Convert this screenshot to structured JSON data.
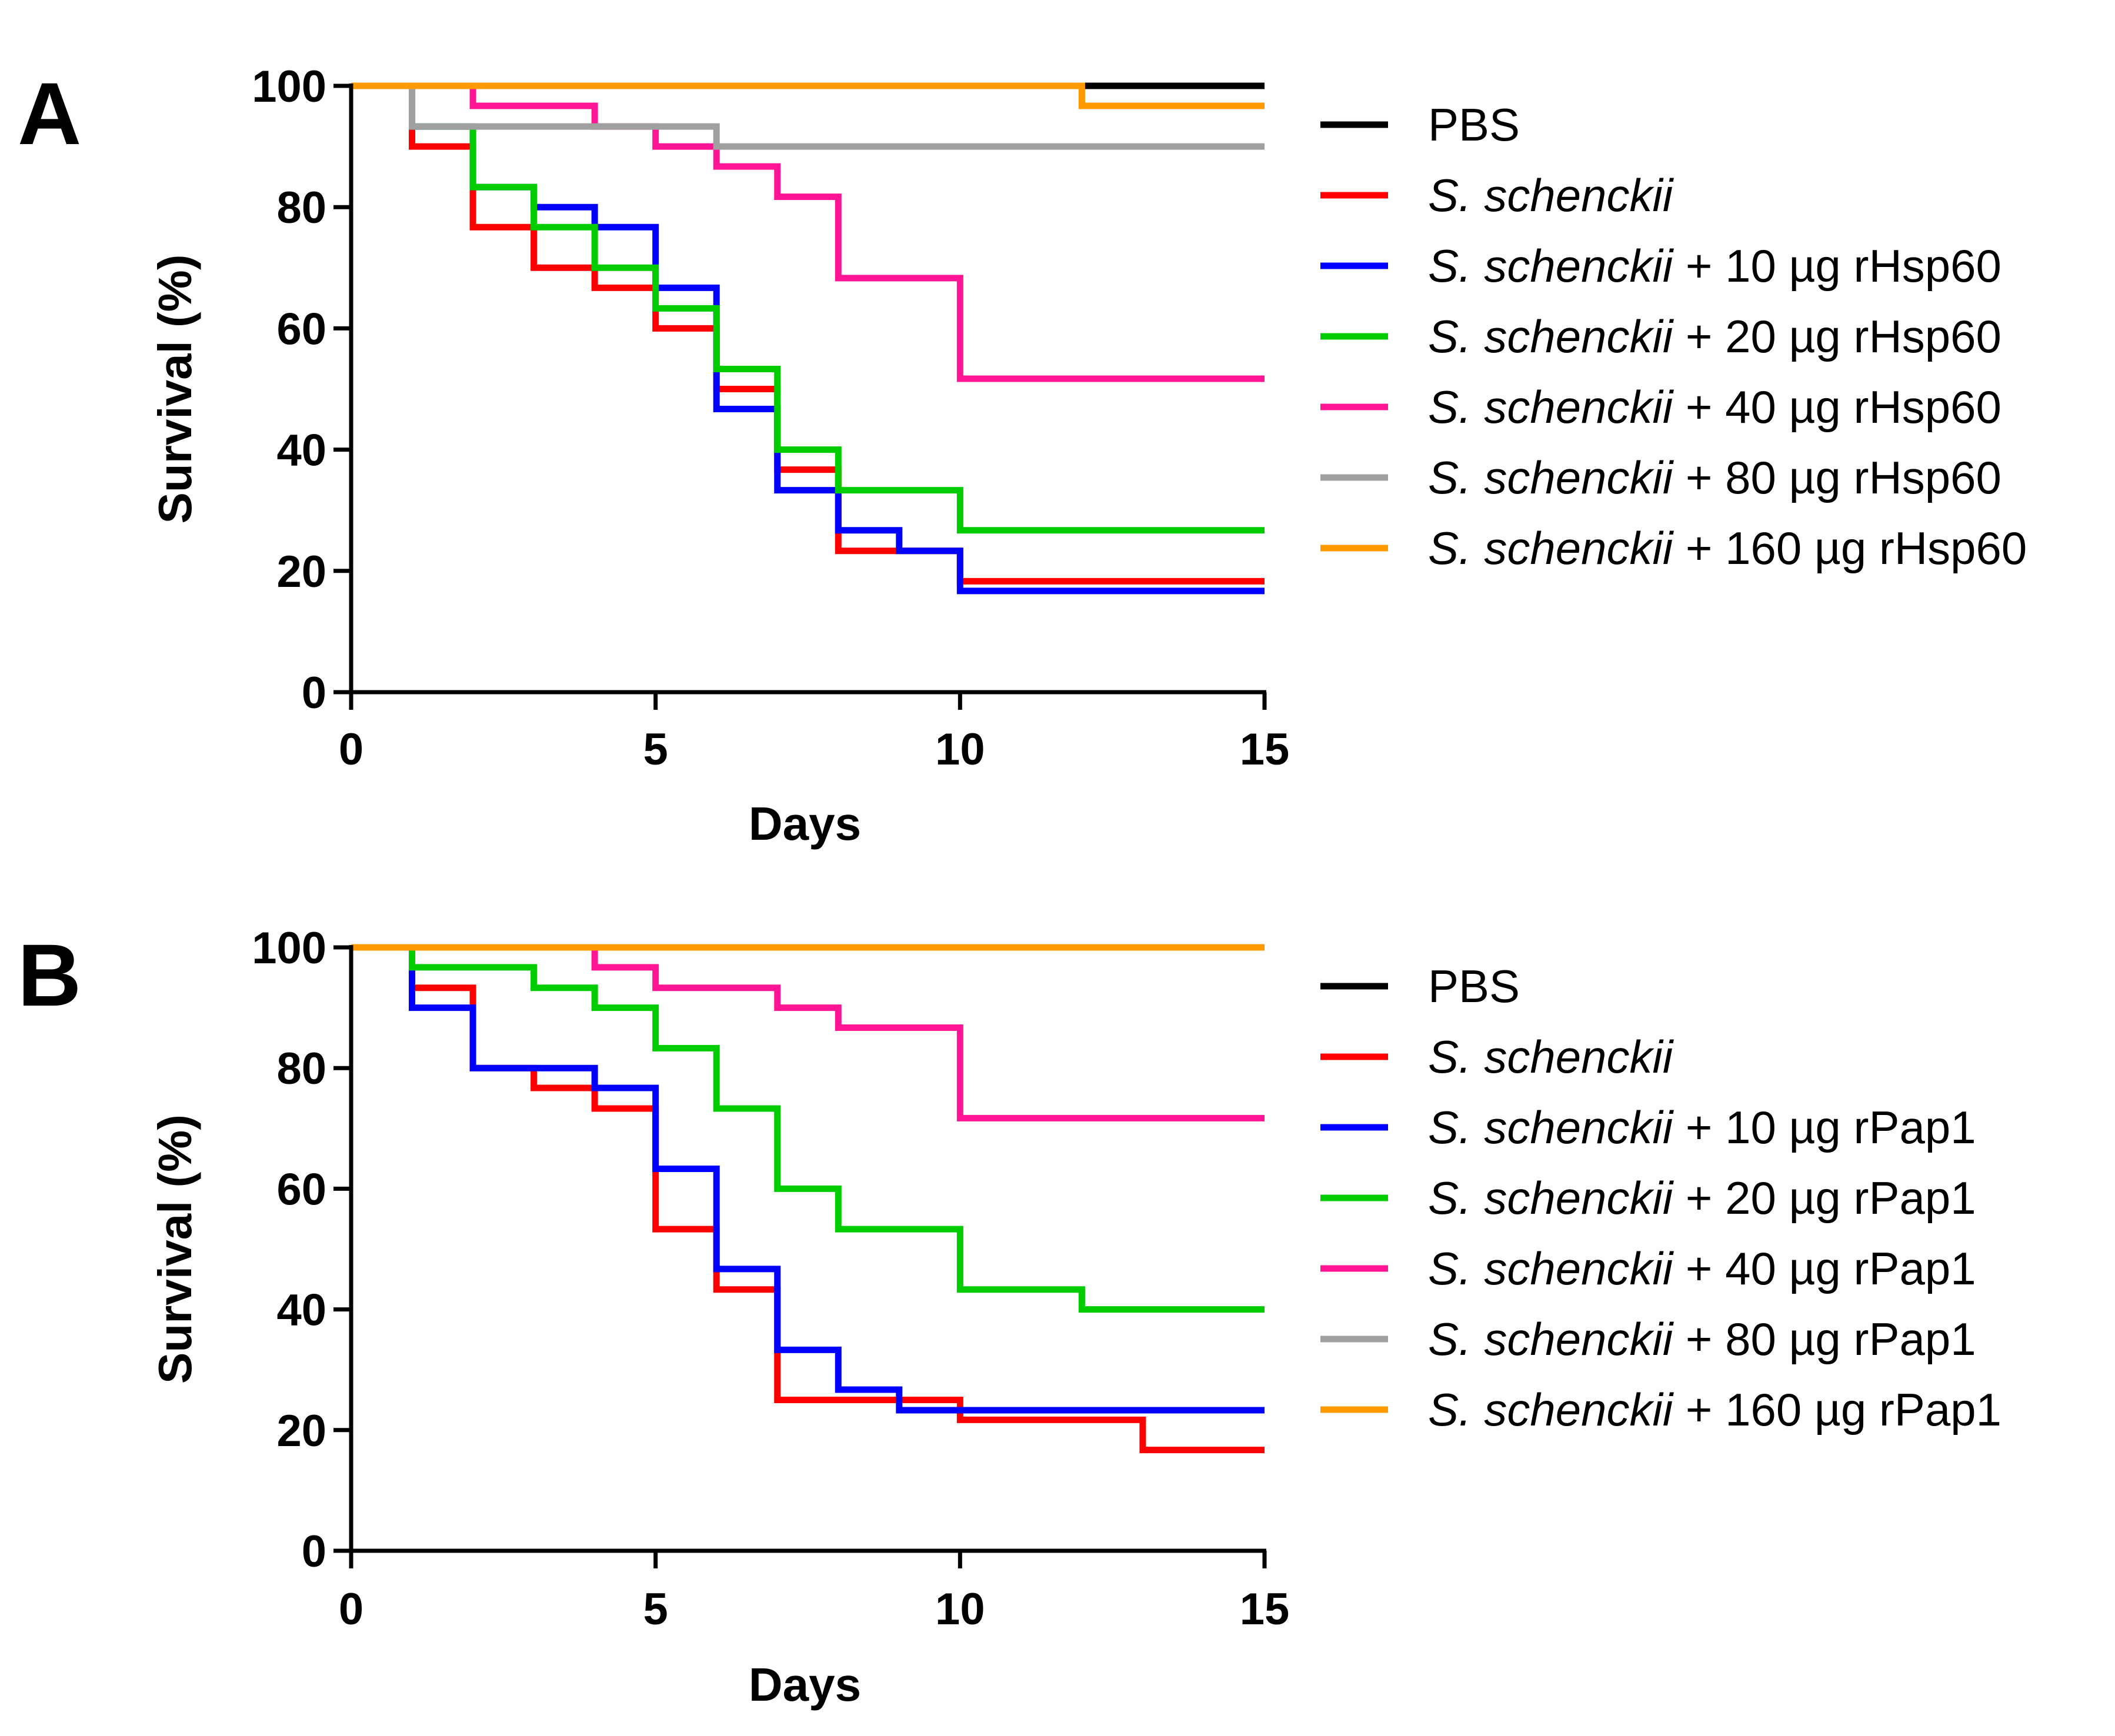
{
  "chart_data": [
    {
      "type": "line",
      "panel": "A",
      "xlabel": "Days",
      "ylabel": "Survival (%)",
      "xlim": [
        0,
        15
      ],
      "ylim": [
        0,
        100
      ],
      "xticks": [
        0,
        5,
        10,
        15
      ],
      "yticks": [
        0,
        20,
        40,
        60,
        80,
        100
      ],
      "xtick_labels": [
        "0",
        "5",
        "10",
        "15"
      ],
      "ytick_labels": [
        "0",
        "20",
        "40",
        "60",
        "80",
        "100"
      ],
      "legend_position": "right",
      "series": [
        {
          "name_plain": "PBS",
          "name_italic": "",
          "name_rest": "",
          "color": "#000000",
          "x": [
            0,
            15
          ],
          "y": [
            100,
            100
          ]
        },
        {
          "name_plain": "",
          "name_italic": "S. schenckii",
          "name_rest": "",
          "color": "#ff0000",
          "x": [
            0,
            1,
            2,
            3,
            4,
            5,
            6,
            7,
            8,
            10,
            15
          ],
          "y": [
            100,
            90,
            76.7,
            70,
            66.7,
            60,
            50,
            36.7,
            23.3,
            18.3,
            18.3
          ]
        },
        {
          "name_plain": "",
          "name_italic": "S. schenckii",
          "name_rest": " + 10 µg rHsp60",
          "color": "#0000ff",
          "x": [
            0,
            1,
            2,
            3,
            4,
            5,
            6,
            7,
            8,
            9,
            10,
            15
          ],
          "y": [
            100,
            93.3,
            83.3,
            80,
            76.7,
            66.7,
            46.7,
            33.3,
            26.7,
            23.3,
            16.7,
            16.7
          ]
        },
        {
          "name_plain": "",
          "name_italic": "S. schenckii",
          "name_rest": " + 20 µg rHsp60",
          "color": "#00cc00",
          "x": [
            0,
            1,
            2,
            3,
            4,
            5,
            6,
            7,
            8,
            10,
            15
          ],
          "y": [
            100,
            93.3,
            83.3,
            76.7,
            70,
            63.3,
            53.3,
            40,
            33.3,
            26.7,
            26.7
          ]
        },
        {
          "name_plain": "",
          "name_italic": "S. schenckii",
          "name_rest": " + 40 µg rHsp60",
          "color": "#ff1493",
          "x": [
            0,
            2,
            4,
            5,
            6,
            7,
            8,
            10,
            15
          ],
          "y": [
            100,
            96.7,
            93.3,
            90,
            86.7,
            81.7,
            68.3,
            51.7,
            51.7
          ]
        },
        {
          "name_plain": "",
          "name_italic": "S. schenckii",
          "name_rest": " + 80 µg rHsp60",
          "color": "#a0a0a0",
          "x": [
            0,
            1,
            6,
            15
          ],
          "y": [
            100,
            93.3,
            90,
            90
          ]
        },
        {
          "name_plain": "",
          "name_italic": "S. schenckii",
          "name_rest": " + 160 µg rHsp60",
          "color": "#ff9900",
          "x": [
            0,
            12,
            15
          ],
          "y": [
            100,
            96.7,
            96.7
          ]
        }
      ]
    },
    {
      "type": "line",
      "panel": "B",
      "xlabel": "Days",
      "ylabel": "Survival (%)",
      "xlim": [
        0,
        15
      ],
      "ylim": [
        0,
        100
      ],
      "xticks": [
        0,
        5,
        10,
        15
      ],
      "yticks": [
        0,
        20,
        40,
        60,
        80,
        100
      ],
      "xtick_labels": [
        "0",
        "5",
        "10",
        "15"
      ],
      "ytick_labels": [
        "0",
        "20",
        "40",
        "60",
        "80",
        "100"
      ],
      "legend_position": "right",
      "series": [
        {
          "name_plain": "PBS",
          "name_italic": "",
          "name_rest": "",
          "color": "#000000",
          "x": [
            0,
            15
          ],
          "y": [
            100,
            100
          ]
        },
        {
          "name_plain": "",
          "name_italic": "S. schenckii",
          "name_rest": "",
          "color": "#ff0000",
          "x": [
            0,
            1,
            2,
            3,
            4,
            5,
            6,
            7,
            10,
            13,
            15
          ],
          "y": [
            100,
            93.3,
            80,
            76.7,
            73.3,
            53.3,
            43.3,
            25,
            21.7,
            16.7,
            16.7
          ]
        },
        {
          "name_plain": "",
          "name_italic": "S. schenckii",
          "name_rest": " + 10 µg rPap1",
          "color": "#0000ff",
          "x": [
            0,
            1,
            2,
            4,
            5,
            6,
            7,
            8,
            9,
            15
          ],
          "y": [
            100,
            90,
            80,
            76.7,
            63.3,
            46.7,
            33.3,
            26.7,
            23.3,
            23.3
          ]
        },
        {
          "name_plain": "",
          "name_italic": "S. schenckii",
          "name_rest": " + 20 µg rPap1",
          "color": "#00cc00",
          "x": [
            0,
            1,
            3,
            4,
            5,
            6,
            7,
            8,
            10,
            12,
            15
          ],
          "y": [
            100,
            96.7,
            93.3,
            90,
            83.3,
            73.3,
            60,
            53.3,
            43.3,
            40,
            40
          ]
        },
        {
          "name_plain": "",
          "name_italic": "S. schenckii",
          "name_rest": " + 40 µg rPap1",
          "color": "#ff1493",
          "x": [
            0,
            4,
            5,
            7,
            8,
            10,
            15
          ],
          "y": [
            100,
            96.7,
            93.3,
            90,
            86.7,
            71.7,
            71.7
          ]
        },
        {
          "name_plain": "",
          "name_italic": "S. schenckii",
          "name_rest": " + 80 µg rPap1",
          "color": "#a0a0a0",
          "x": [
            0,
            15
          ],
          "y": [
            100,
            100
          ]
        },
        {
          "name_plain": "",
          "name_italic": "S. schenckii",
          "name_rest": " + 160 µg rPap1",
          "color": "#ff9900",
          "x": [
            0,
            15
          ],
          "y": [
            100,
            100
          ]
        }
      ]
    }
  ]
}
